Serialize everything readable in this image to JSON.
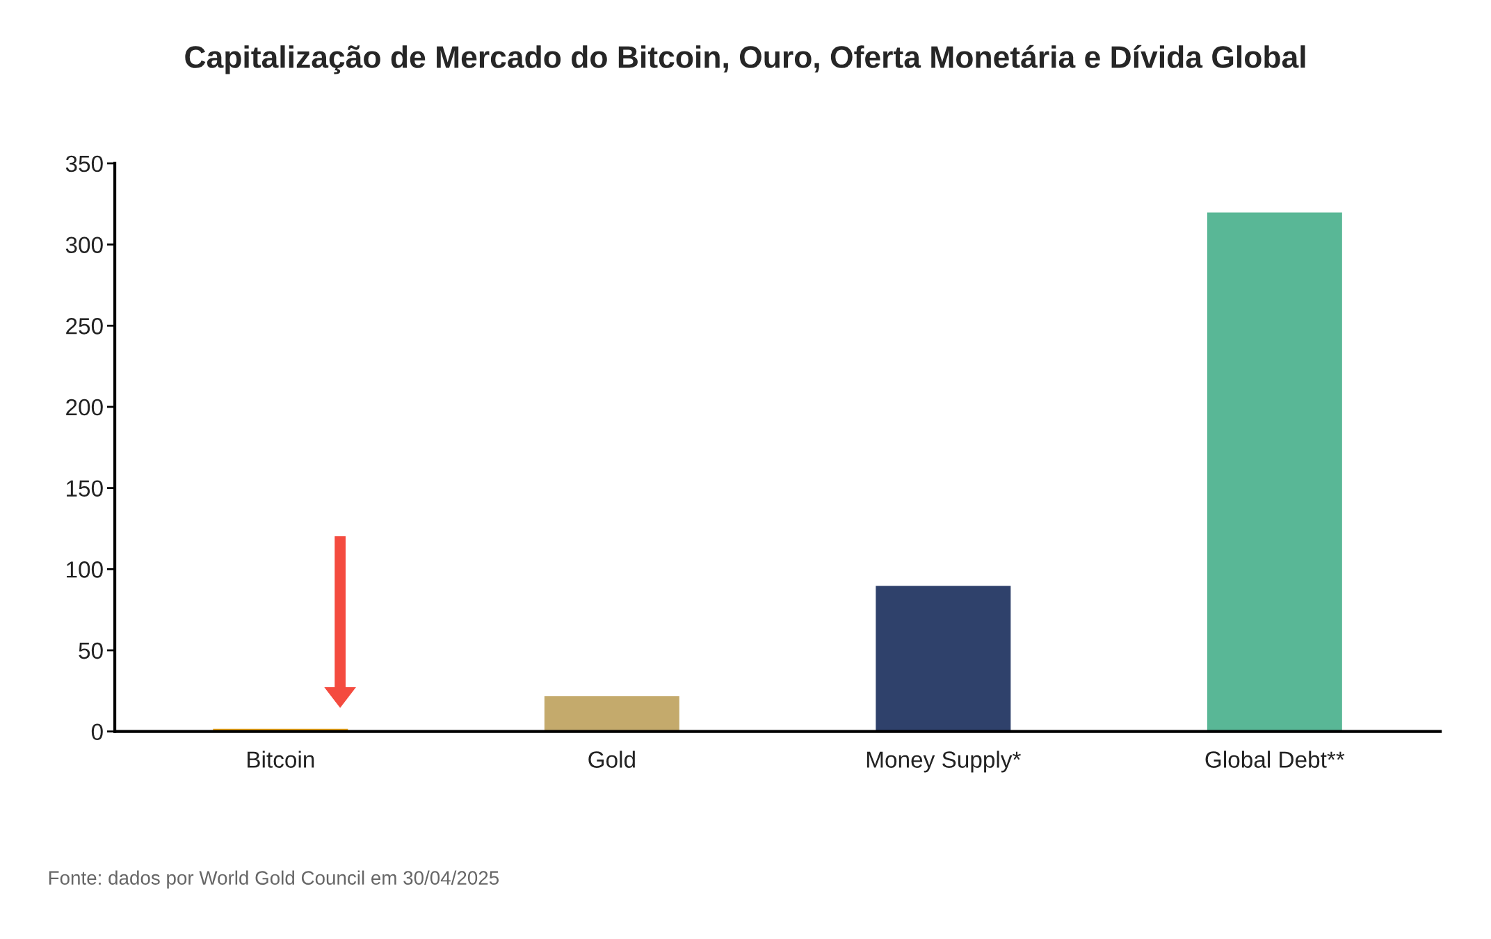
{
  "chart_data": {
    "type": "bar",
    "title": "Capitalização de Mercado do Bitcoin, Ouro, Oferta Monetária e Dívida Global",
    "categories": [
      "Bitcoin",
      "Gold",
      "Money Supply*",
      "Global Debt**"
    ],
    "values": [
      2,
      22,
      90,
      320
    ],
    "colors": [
      "#f0a818",
      "#c4aa6c",
      "#2f416b",
      "#59b796"
    ],
    "ylim": [
      0,
      350
    ],
    "yticks": [
      0,
      50,
      100,
      150,
      200,
      250,
      300,
      350
    ],
    "grid": false,
    "legend": false,
    "annotations": [
      "Fonte: dados por World Gold Council em 30/04/2025"
    ]
  }
}
